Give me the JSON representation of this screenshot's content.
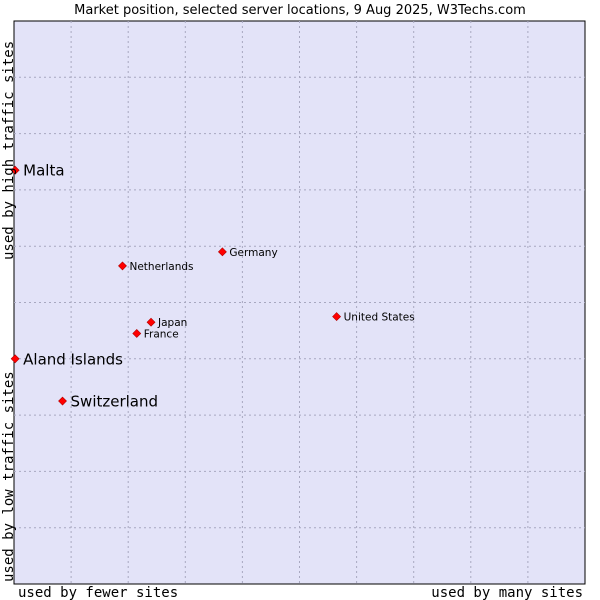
{
  "chart_data": {
    "type": "scatter",
    "title": "Market position, selected server locations, 9 Aug 2025, W3Techs.com",
    "xlabel_left": "used by fewer sites",
    "xlabel_right": "used by many sites",
    "ylabel_bottom": "used by low traffic sites",
    "ylabel_top": "used by high traffic sites",
    "xlim": [
      0,
      100
    ],
    "ylim": [
      0,
      100
    ],
    "grid": true,
    "marker_color": "#ff0000",
    "plot_background": "#e3e3f8",
    "points": [
      {
        "name": "Malta",
        "x": 0.2,
        "y": 73.5,
        "highlight": true
      },
      {
        "name": "Aland Islands",
        "x": 0.2,
        "y": 40.0,
        "highlight": true
      },
      {
        "name": "Switzerland",
        "x": 8.5,
        "y": 32.5,
        "highlight": true
      },
      {
        "name": "Netherlands",
        "x": 19.0,
        "y": 56.5,
        "highlight": false
      },
      {
        "name": "Germany",
        "x": 36.5,
        "y": 59.0,
        "highlight": false
      },
      {
        "name": "United States",
        "x": 56.5,
        "y": 47.5,
        "highlight": false
      },
      {
        "name": "Japan",
        "x": 24.0,
        "y": 46.5,
        "highlight": false
      },
      {
        "name": "France",
        "x": 21.5,
        "y": 44.5,
        "highlight": false
      }
    ]
  }
}
